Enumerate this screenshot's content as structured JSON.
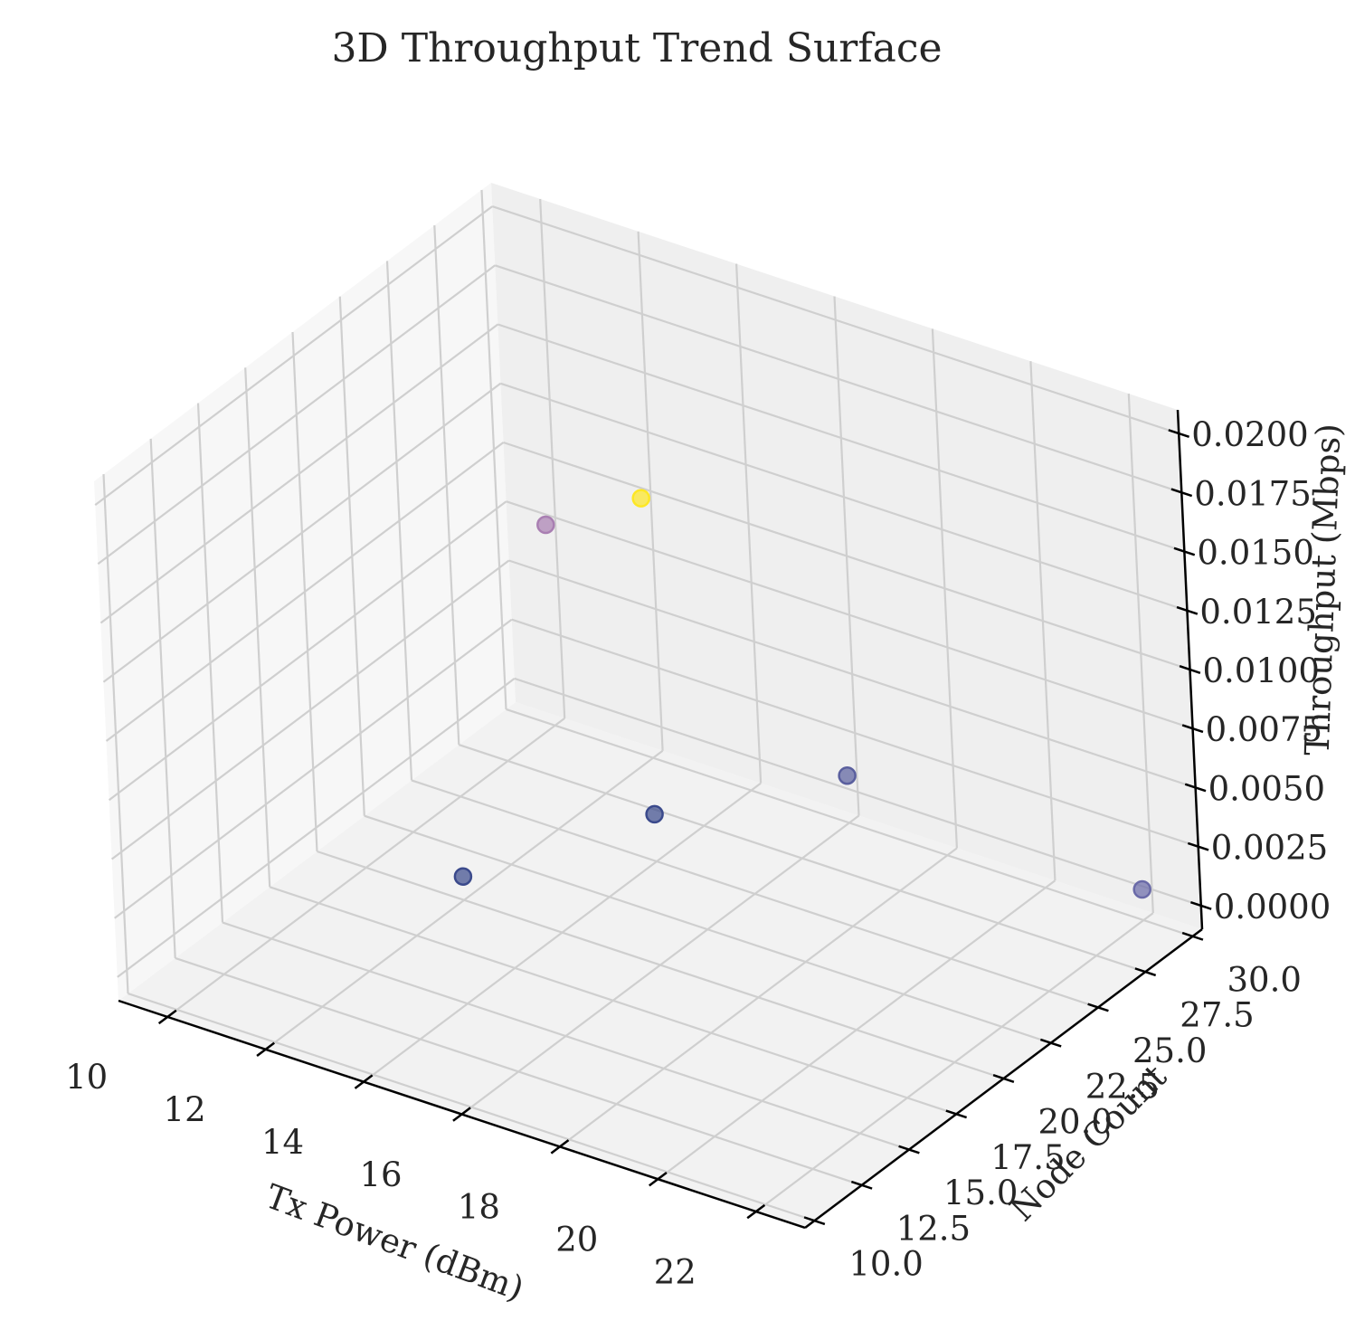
{
  "chart_data": {
    "type": "scatter",
    "projection": "3d",
    "title": "3D Throughput Trend Surface",
    "xlabel": "Tx Power (dBm)",
    "ylabel": "Node Count",
    "zlabel": "Throughput (Mbps)",
    "xlim": [
      9,
      23
    ],
    "ylim": [
      9.5,
      30.5
    ],
    "zlim": [
      -0.001,
      0.021
    ],
    "x_ticks": [
      "10",
      "12",
      "14",
      "16",
      "18",
      "20",
      "22"
    ],
    "y_ticks": [
      "10.0",
      "12.5",
      "15.0",
      "17.5",
      "20.0",
      "22.5",
      "25.0",
      "27.5",
      "30.0"
    ],
    "z_ticks": [
      "0.0000",
      "0.0025",
      "0.0050",
      "0.0075",
      "0.0100",
      "0.0125",
      "0.0150",
      "0.0175",
      "0.0200"
    ],
    "grid": true,
    "colormap": "viridis",
    "points": [
      {
        "x": 12,
        "y": 20,
        "z": 0.0,
        "color": "#3b4a8c"
      },
      {
        "x": 10,
        "y": 30,
        "z": 0.0075,
        "color": "#a97fb2"
      },
      {
        "x": 12,
        "y": 30,
        "z": 0.01,
        "color": "#fde725"
      },
      {
        "x": 16,
        "y": 30,
        "z": 0.001,
        "color": "#5a5f9e"
      },
      {
        "x": 14,
        "y": 25,
        "z": 0.001,
        "color": "#3b4a8c"
      },
      {
        "x": 22,
        "y": 30,
        "z": 0.0003,
        "color": "#6a6aa8"
      }
    ]
  }
}
